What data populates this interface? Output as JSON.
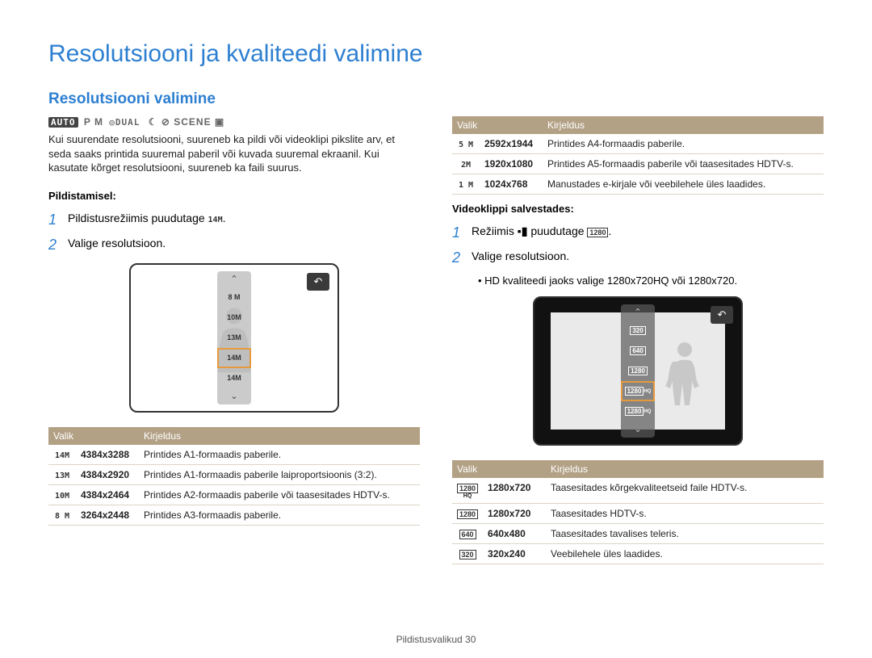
{
  "title": "Resolutsiooni ja kvaliteedi valimine",
  "subtitle": "Resolutsiooni valimine",
  "modebar": [
    "AUTO",
    "P",
    "M",
    "DUAL",
    "SCENE"
  ],
  "intro": "Kui suurendate resolutsiooni, suureneb ka pildi või videoklipi pikslite arv, et seda saaks printida suuremal paberil või kuvada suuremal ekraanil. Kui kasutate kõrget resolutsiooni, suureneb ka faili suurus.",
  "left": {
    "heading": "Pildistamisel:",
    "step1": "Pildistusrežiimis puudutage",
    "step2": "Valige resolutsioon.",
    "menuItems": [
      "8 M",
      "10M",
      "13M",
      "14M",
      "14M"
    ],
    "menuSelected": 3,
    "table": {
      "headers": [
        "Valik",
        "Kirjeldus"
      ],
      "rows": [
        {
          "icon": "14M",
          "size": "4384x3288",
          "desc": "Printides A1-formaadis paberile."
        },
        {
          "icon": "13M",
          "size": "4384x2920",
          "desc": "Printides A1-formaadis paberile laiproportsioonis (3:2)."
        },
        {
          "icon": "10M",
          "size": "4384x2464",
          "desc": "Printides A2-formaadis paberile või taasesitades HDTV-s."
        },
        {
          "icon": "8 M",
          "size": "3264x2448",
          "desc": "Printides A3-formaadis paberile."
        }
      ]
    }
  },
  "right": {
    "topTable": {
      "headers": [
        "Valik",
        "Kirjeldus"
      ],
      "rows": [
        {
          "icon": "5 M",
          "size": "2592x1944",
          "desc": "Printides A4-formaadis paberile."
        },
        {
          "icon": "2M",
          "size": "1920x1080",
          "desc": "Printides A5-formaadis paberile või taasesitades HDTV-s."
        },
        {
          "icon": "1 M",
          "size": "1024x768",
          "desc": "Manustades e-kirjale või veebilehele üles laadides."
        }
      ]
    },
    "heading": "Videoklippi salvestades:",
    "step1": "Režiimis",
    "step1b": "puudutage",
    "step2": "Valige resolutsioon.",
    "bullet": "HD kvaliteedi jaoks valige 1280x720HQ või 1280x720.",
    "menuItems": [
      "320",
      "640",
      "1280",
      "1280 HQ",
      "1280 HQ"
    ],
    "menuSelected": 3,
    "table": {
      "headers": [
        "Valik",
        "Kirjeldus"
      ],
      "rows": [
        {
          "icon": "1280 HQ",
          "size": "1280x720",
          "desc": "Taasesitades kõrgekvaliteetseid faile HDTV-s."
        },
        {
          "icon": "1280",
          "size": "1280x720",
          "desc": "Taasesitades HDTV-s."
        },
        {
          "icon": "640",
          "size": "640x480",
          "desc": "Taasesitades tavalises teleris."
        },
        {
          "icon": "320",
          "size": "320x240",
          "desc": "Veebilehele üles laadides."
        }
      ]
    }
  },
  "footer": {
    "section": "Pildistusvalikud",
    "page": "30"
  },
  "colors": {
    "title": "#2d7fd1",
    "tableHeader": "#b3a186",
    "tableBorder": "#dcd4c4",
    "highlight": "#e69a3e"
  }
}
